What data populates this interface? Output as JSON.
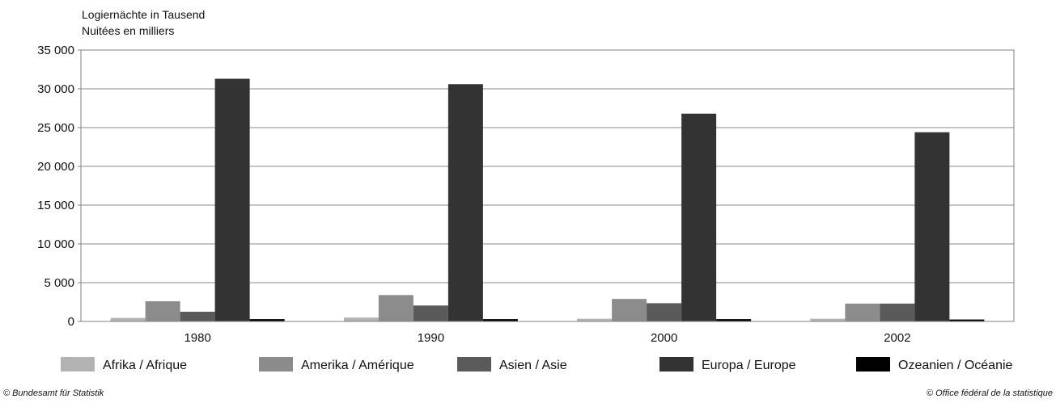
{
  "chart_data": {
    "type": "bar",
    "ylabel_lines": [
      "Logiernächte in Tausend",
      "Nuitées en milliers"
    ],
    "categories": [
      "1980",
      "1990",
      "2000",
      "2002"
    ],
    "ylim": [
      0,
      35000
    ],
    "yticks": [
      0,
      5000,
      10000,
      15000,
      20000,
      25000,
      30000,
      35000
    ],
    "ytick_labels": [
      "0",
      "5 000",
      "10 000",
      "15 000",
      "20 000",
      "25 000",
      "30 000",
      "35 000"
    ],
    "grid": true,
    "legend_position": "bottom",
    "series": [
      {
        "name": "Afrika / Afrique",
        "color": "#b3b3b3",
        "values": [
          450,
          500,
          350,
          350
        ]
      },
      {
        "name": "Amerika / Amérique",
        "color": "#8c8c8c",
        "values": [
          2600,
          3400,
          2900,
          2300
        ]
      },
      {
        "name": "Asien / Asie",
        "color": "#5a5a5a",
        "values": [
          1250,
          2050,
          2350,
          2300
        ]
      },
      {
        "name": "Europa / Europe",
        "color": "#333333",
        "values": [
          31300,
          30600,
          26800,
          24400
        ]
      },
      {
        "name": "Ozeanien / Océanie",
        "color": "#000000",
        "values": [
          300,
          300,
          300,
          250
        ]
      }
    ]
  },
  "footer": {
    "left": "© Bundesamt für Statistik",
    "right": "© Office fédéral de la statistique"
  }
}
